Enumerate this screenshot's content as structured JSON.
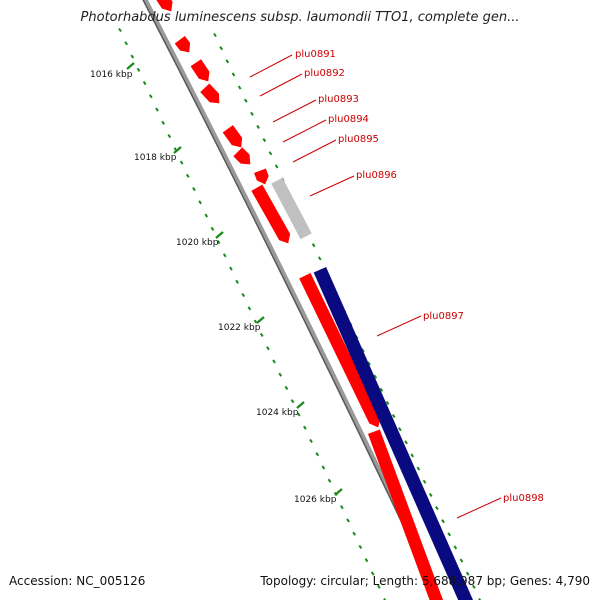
{
  "title": "Photorhabdus luminescens subsp. laumondii TTO1, complete gen...",
  "accession": "Accession: NC_005126",
  "topology": "Topology: circular; Length: 5,688,987 bp; Genes: 4,790",
  "scale_labels": [
    "1016 kbp",
    "1018 kbp",
    "1020 kbp",
    "1022 kbp",
    "1024 kbp",
    "1026 kbp"
  ],
  "genes": [
    {
      "label": "plu0891",
      "strand": "forward"
    },
    {
      "label": "plu0892",
      "strand": "forward"
    },
    {
      "label": "plu0893",
      "strand": "forward"
    },
    {
      "label": "plu0894",
      "strand": "forward"
    },
    {
      "label": "plu0895",
      "strand": "forward"
    },
    {
      "label": "plu0896",
      "strand": "forward"
    },
    {
      "label": "plu0897",
      "strand": "forward"
    },
    {
      "label": "plu0898",
      "strand": "forward"
    }
  ],
  "colors": {
    "gene_red": "#ff0000",
    "gene_grey": "#c0c0c0",
    "gene_navy": "#0a0a80",
    "backbone": "#888888",
    "tick_green": "#1a8a1a",
    "label_red": "#cc0000"
  }
}
